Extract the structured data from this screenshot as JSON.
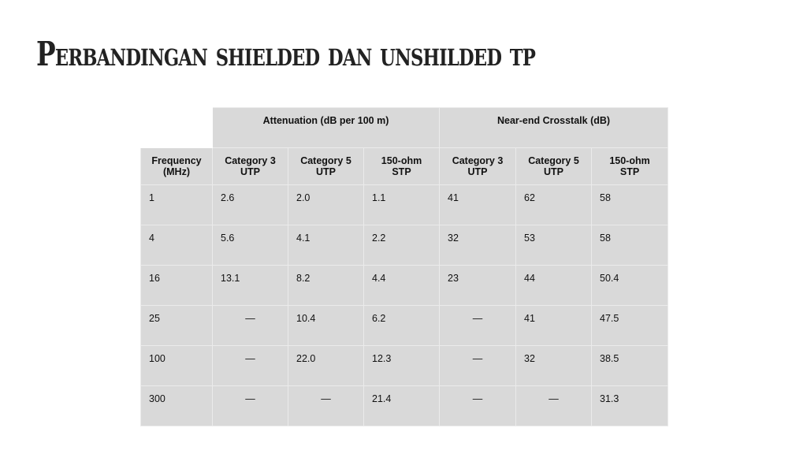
{
  "title": "Perbandingan shielded dan unshilded tp",
  "table": {
    "group_headers": [
      "Attenuation (dB per 100 m)",
      "Near-end Crosstalk (dB)"
    ],
    "column_headers": [
      "Frequency (MHz)",
      "Category 3 UTP",
      "Category 5 UTP",
      "150-ohm STP",
      "Category 3 UTP",
      "Category 5 UTP",
      "150-ohm STP"
    ],
    "rows": [
      [
        "1",
        "2.6",
        "2.0",
        "1.1",
        "41",
        "62",
        "58"
      ],
      [
        "4",
        "5.6",
        "4.1",
        "2.2",
        "32",
        "53",
        "58"
      ],
      [
        "16",
        "13.1",
        "8.2",
        "4.4",
        "23",
        "44",
        "50.4"
      ],
      [
        "25",
        "—",
        "10.4",
        "6.2",
        "—",
        "41",
        "47.5"
      ],
      [
        "100",
        "—",
        "22.0",
        "12.3",
        "—",
        "32",
        "38.5"
      ],
      [
        "300",
        "—",
        "—",
        "21.4",
        "—",
        "—",
        "31.3"
      ]
    ]
  }
}
